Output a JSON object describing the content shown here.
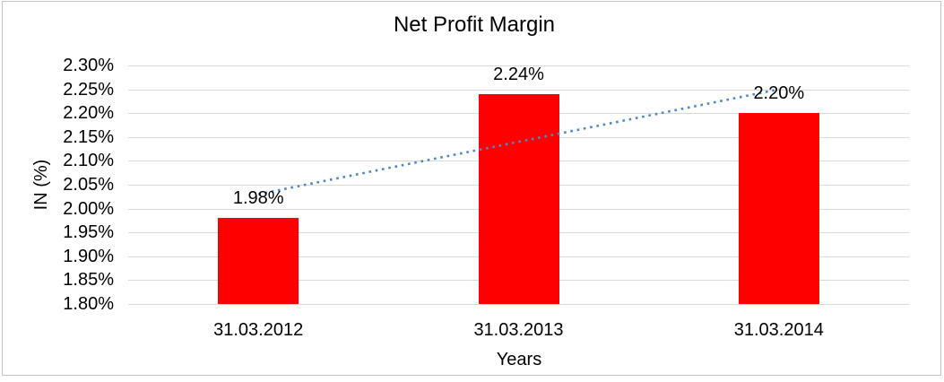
{
  "chart_data": {
    "type": "bar",
    "title": "Net Profit Margin",
    "xlabel": "Years",
    "ylabel": "IN (%)",
    "categories": [
      "31.03.2012",
      "31.03.2013",
      "31.03.2014"
    ],
    "values": [
      1.98,
      2.24,
      2.2
    ],
    "data_labels": [
      "1.98%",
      "2.24%",
      "2.20%"
    ],
    "yticks": [
      "2.30%",
      "2.25%",
      "2.20%",
      "2.15%",
      "2.10%",
      "2.05%",
      "2.00%",
      "1.95%",
      "1.90%",
      "1.85%",
      "1.80%"
    ],
    "ylim": [
      1.8,
      2.3
    ],
    "ytick_step": 0.05,
    "grid": true,
    "legend_position": "none",
    "bar_color": "#ff0000",
    "gridline_color": "#d9d9d9",
    "trendline": {
      "type": "linear",
      "style": "dotted",
      "color": "#4f86c6",
      "start_value": 2.03,
      "end_value": 2.25
    }
  }
}
